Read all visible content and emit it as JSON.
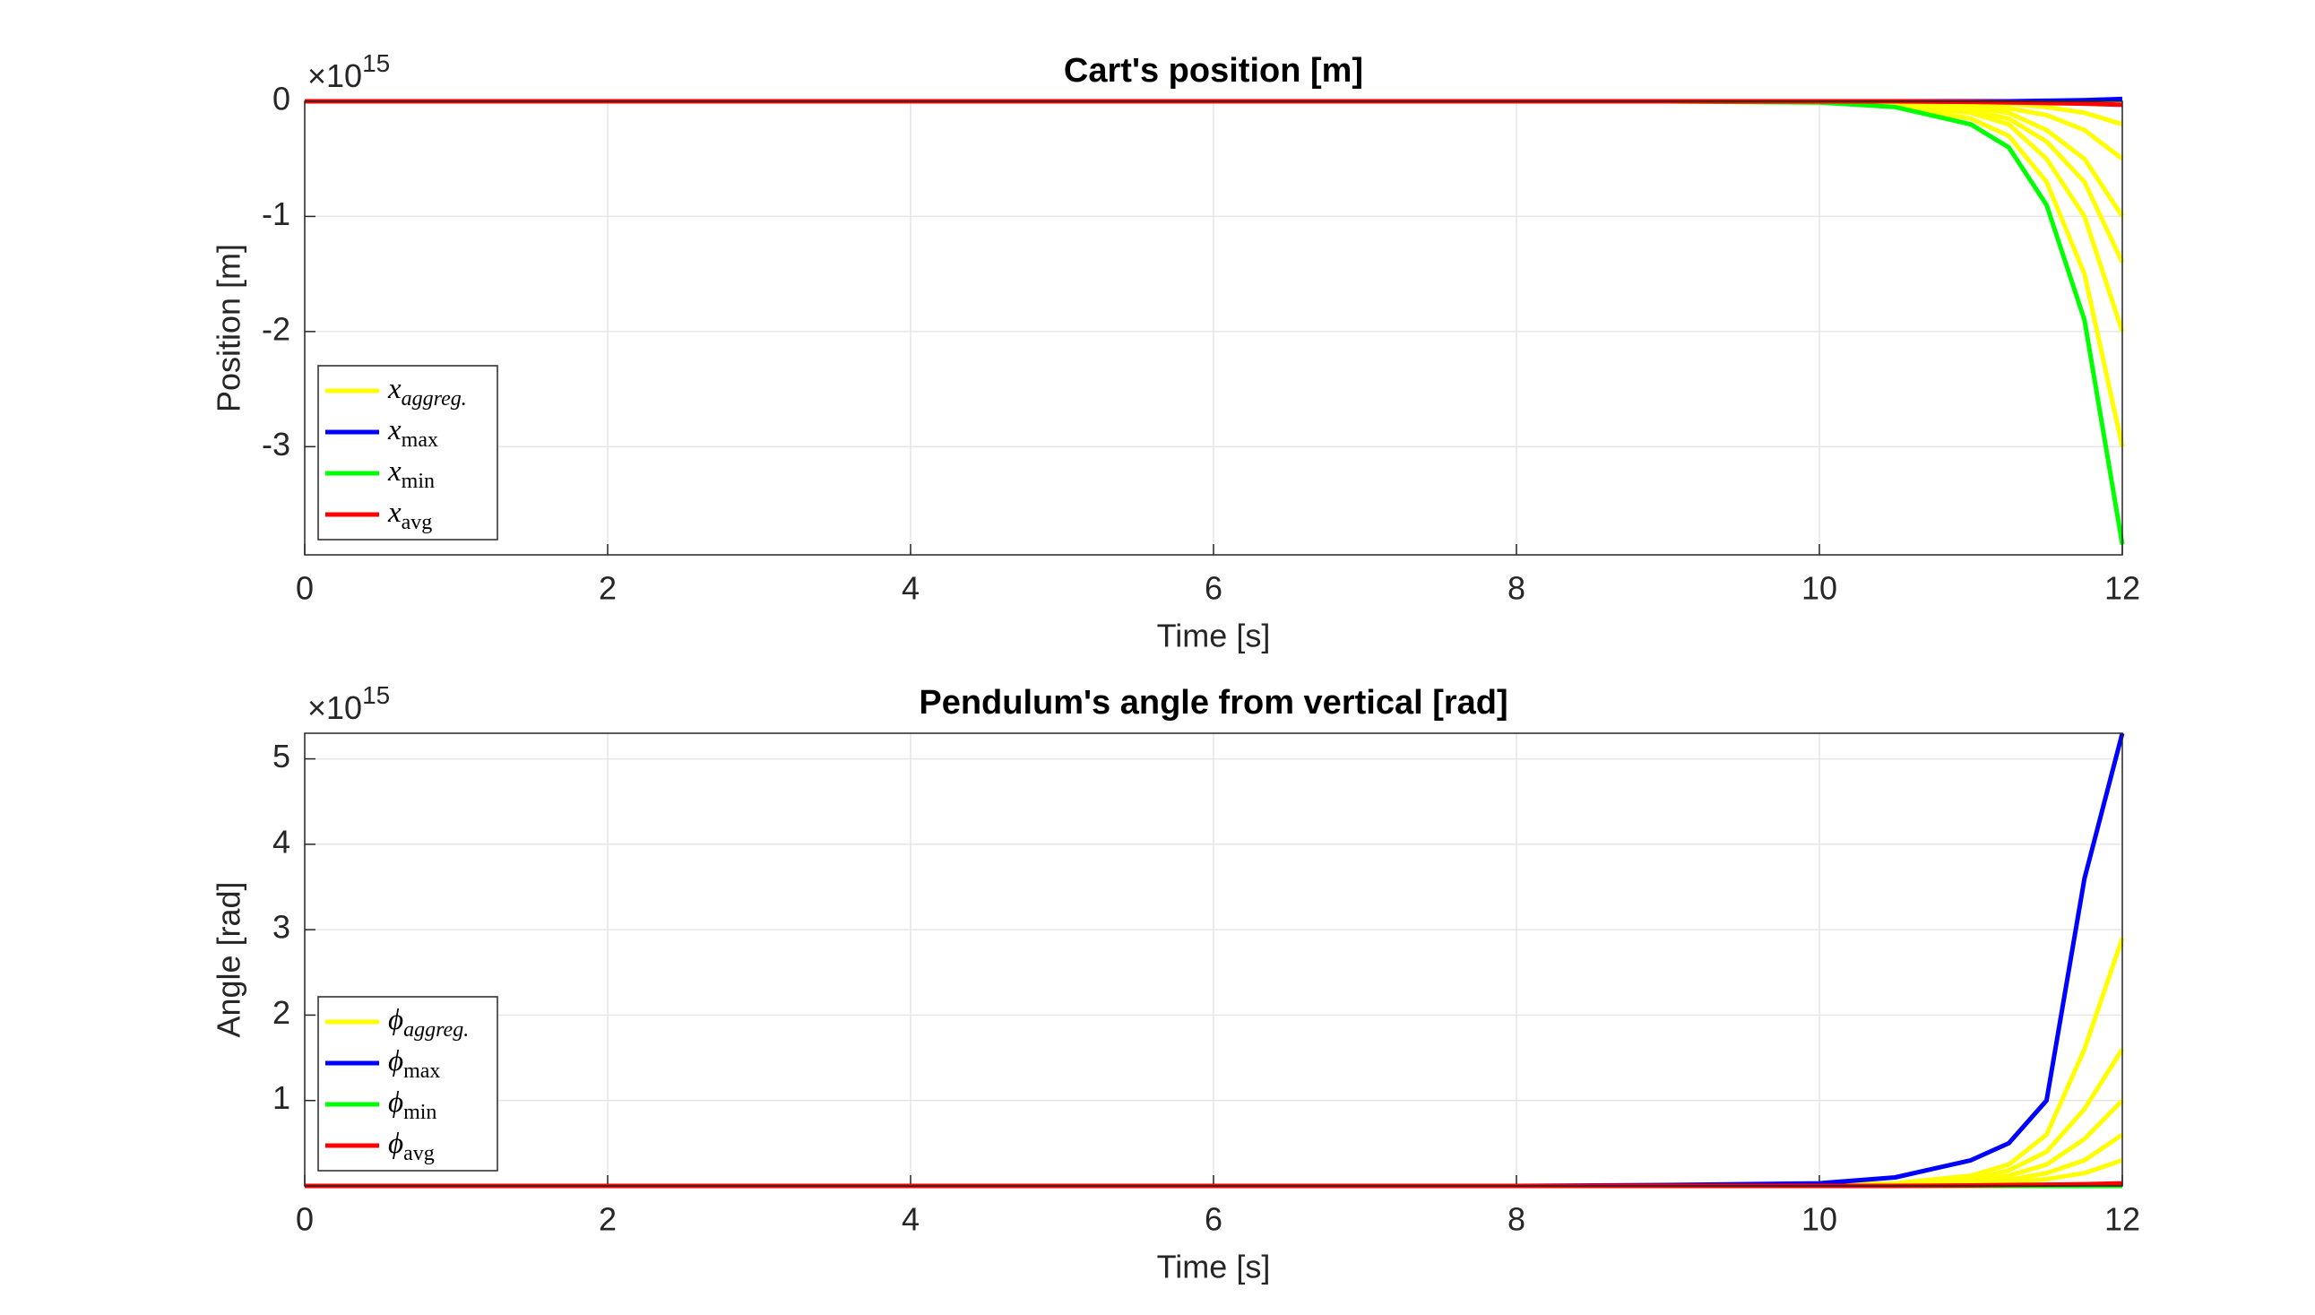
{
  "chart_data": [
    {
      "type": "line",
      "title": "Cart's position [m]",
      "xlabel": "Time [s]",
      "ylabel": "Position [m]",
      "y_multiplier": {
        "base": "×10",
        "exponent": "15"
      },
      "x": [
        0,
        2,
        4,
        6,
        8,
        9,
        10,
        10.5,
        11,
        11.25,
        11.5,
        11.75,
        12
      ],
      "xlim": [
        0,
        12
      ],
      "xticks": [
        0,
        2,
        4,
        6,
        8,
        10,
        12
      ],
      "ylim": [
        -3.94,
        0
      ],
      "yticks": [
        -3,
        -2,
        -1,
        0
      ],
      "grid": true,
      "legend": "lower left",
      "series": [
        {
          "name": "x",
          "subscript": "aggreg.",
          "color": "#ffff00",
          "values": [
            [
              0,
              0,
              0,
              0,
              0,
              0,
              -0.01,
              -0.04,
              -0.15,
              -0.3,
              -0.7,
              -1.5,
              -3.0
            ],
            [
              0,
              0,
              0,
              0,
              0,
              0,
              -0.01,
              -0.03,
              -0.1,
              -0.2,
              -0.5,
              -1.0,
              -2.0
            ],
            [
              0,
              0,
              0,
              0,
              0,
              0,
              0,
              -0.02,
              -0.08,
              -0.15,
              -0.35,
              -0.7,
              -1.4
            ],
            [
              0,
              0,
              0,
              0,
              0,
              0,
              0,
              -0.01,
              -0.05,
              -0.1,
              -0.25,
              -0.5,
              -1.0
            ],
            [
              0,
              0,
              0,
              0,
              0,
              0,
              0,
              -0.01,
              -0.03,
              -0.06,
              -0.12,
              -0.25,
              -0.5
            ],
            [
              0,
              0,
              0,
              0,
              0,
              0,
              0,
              0,
              -0.01,
              -0.02,
              -0.05,
              -0.1,
              -0.2
            ]
          ]
        },
        {
          "name": "x",
          "subscript": "max",
          "color": "#0000ff",
          "values": [
            0,
            0,
            0,
            0,
            0,
            0,
            0,
            0,
            0,
            0,
            0.005,
            0.01,
            0.02
          ]
        },
        {
          "name": "x",
          "subscript": "min",
          "color": "#00ff00",
          "values": [
            0,
            0,
            0,
            0,
            0,
            0,
            -0.01,
            -0.05,
            -0.2,
            -0.4,
            -0.9,
            -1.9,
            -3.85
          ]
        },
        {
          "name": "x",
          "subscript": "avg",
          "color": "#ff0000",
          "values": [
            0,
            0,
            0,
            0,
            0,
            0,
            0,
            0,
            -0.005,
            -0.01,
            -0.015,
            -0.02,
            -0.03
          ]
        }
      ]
    },
    {
      "type": "line",
      "title": "Pendulum's angle from vertical [rad]",
      "xlabel": "Time [s]",
      "ylabel": "Angle [rad]",
      "y_multiplier": {
        "base": "×10",
        "exponent": "15"
      },
      "x": [
        0,
        2,
        4,
        6,
        8,
        9,
        10,
        10.5,
        11,
        11.25,
        11.5,
        11.75,
        12
      ],
      "xlim": [
        0,
        12
      ],
      "xticks": [
        0,
        2,
        4,
        6,
        8,
        10,
        12
      ],
      "ylim": [
        0,
        5.3
      ],
      "yticks": [
        1,
        2,
        3,
        4,
        5
      ],
      "grid": true,
      "legend": "lower left",
      "series": [
        {
          "name": "ϕ",
          "subscript": "aggreg.",
          "color": "#ffff00",
          "values": [
            [
              0,
              0,
              0,
              0,
              0,
              0,
              0.01,
              0.03,
              0.12,
              0.25,
              0.6,
              1.6,
              2.9
            ],
            [
              0,
              0,
              0,
              0,
              0,
              0,
              0,
              0.02,
              0.08,
              0.18,
              0.4,
              0.9,
              1.6
            ],
            [
              0,
              0,
              0,
              0,
              0,
              0,
              0,
              0.01,
              0.05,
              0.12,
              0.25,
              0.55,
              1.0
            ],
            [
              0,
              0,
              0,
              0,
              0,
              0,
              0,
              0.01,
              0.03,
              0.07,
              0.15,
              0.3,
              0.6
            ],
            [
              0,
              0,
              0,
              0,
              0,
              0,
              0,
              0,
              0.02,
              0.04,
              0.08,
              0.15,
              0.3
            ]
          ]
        },
        {
          "name": "ϕ",
          "subscript": "max",
          "color": "#0000ff",
          "values": [
            0,
            0,
            0,
            0,
            0,
            0.01,
            0.03,
            0.1,
            0.3,
            0.5,
            1.0,
            3.6,
            5.3
          ]
        },
        {
          "name": "ϕ",
          "subscript": "min",
          "color": "#00ff00",
          "values": [
            0,
            0,
            0,
            0,
            0,
            0,
            0,
            0,
            0,
            0,
            0,
            0,
            0
          ]
        },
        {
          "name": "ϕ",
          "subscript": "avg",
          "color": "#ff0000",
          "values": [
            0,
            0,
            0,
            0,
            0,
            0,
            0,
            0,
            0.005,
            0.01,
            0.015,
            0.02,
            0.03
          ]
        }
      ]
    }
  ]
}
